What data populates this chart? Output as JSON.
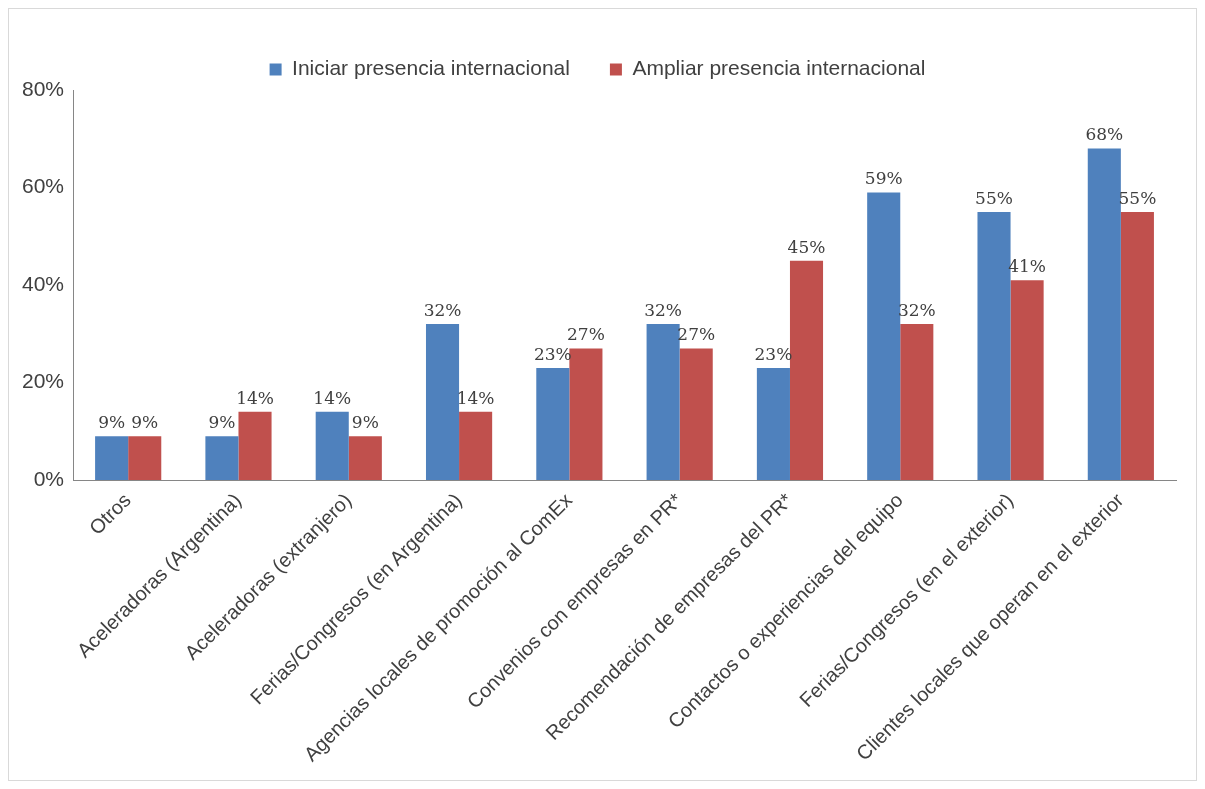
{
  "chart_data": {
    "type": "bar",
    "categories": [
      "Otros",
      "Aceleradoras (Argentina)",
      "Aceleradoras (extranjero)",
      "Ferias/Congresos (en Argentina)",
      "Agencias locales de promoción al ComEx",
      "Convenios con empresas en PR*",
      "Recomendación de empresas del PR*",
      "Contactos o experiencias del equipo",
      "Ferias/Congresos (en el exterior)",
      "Clientes locales que operan en el exterior"
    ],
    "series": [
      {
        "name": "Iniciar presencia internacional",
        "color": "#4f81bd",
        "values": [
          9,
          9,
          14,
          32,
          23,
          32,
          23,
          59,
          55,
          68
        ],
        "value_labels": [
          "9%",
          "9%",
          "14%",
          "32%",
          "23%",
          "32%",
          "23%",
          "59%",
          "55%",
          "68%"
        ]
      },
      {
        "name": "Ampliar presencia internacional",
        "color": "#c0504d",
        "values": [
          9,
          14,
          9,
          14,
          27,
          27,
          45,
          32,
          41,
          55
        ],
        "value_labels": [
          "9%",
          "14%",
          "9%",
          "14%",
          "27%",
          "27%",
          "45%",
          "32%",
          "41%",
          "55%"
        ]
      }
    ],
    "ylim": [
      0,
      80
    ],
    "yticks": [
      {
        "value": 0,
        "label": "0%"
      },
      {
        "value": 20,
        "label": "20%"
      },
      {
        "value": 40,
        "label": "40%"
      },
      {
        "value": 60,
        "label": "60%"
      },
      {
        "value": 80,
        "label": "80%"
      }
    ],
    "grid": false,
    "legend": "top"
  }
}
